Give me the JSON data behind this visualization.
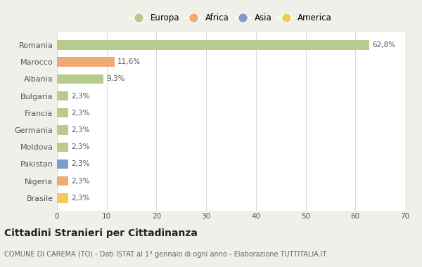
{
  "categories": [
    "Romania",
    "Marocco",
    "Albania",
    "Bulgaria",
    "Francia",
    "Germania",
    "Moldova",
    "Pakistan",
    "Nigeria",
    "Brasile"
  ],
  "values": [
    62.8,
    11.6,
    9.3,
    2.3,
    2.3,
    2.3,
    2.3,
    2.3,
    2.3,
    2.3
  ],
  "labels": [
    "62,8%",
    "11,6%",
    "9,3%",
    "2,3%",
    "2,3%",
    "2,3%",
    "2,3%",
    "2,3%",
    "2,3%",
    "2,3%"
  ],
  "colors": [
    "#b5cc8e",
    "#f0a875",
    "#b5cc8e",
    "#b5cc8e",
    "#b5cc8e",
    "#b5cc8e",
    "#b5cc8e",
    "#7b9dc8",
    "#f0a875",
    "#f2ca5a"
  ],
  "legend_labels": [
    "Europa",
    "Africa",
    "Asia",
    "America"
  ],
  "legend_colors": [
    "#b5cc8e",
    "#f0a875",
    "#7b9dc8",
    "#f2ca5a"
  ],
  "title": "Cittadini Stranieri per Cittadinanza",
  "subtitle": "COMUNE DI CAREMA (TO) - Dati ISTAT al 1° gennaio di ogni anno - Elaborazione TUTTITALIA.IT",
  "xlim": [
    0,
    70
  ],
  "xticks": [
    0,
    10,
    20,
    30,
    40,
    50,
    60,
    70
  ],
  "fig_bg": "#f0f0eb",
  "plot_bg": "#ffffff",
  "grid_color": "#d8d8d8",
  "text_color": "#555555",
  "label_color": "#555555"
}
